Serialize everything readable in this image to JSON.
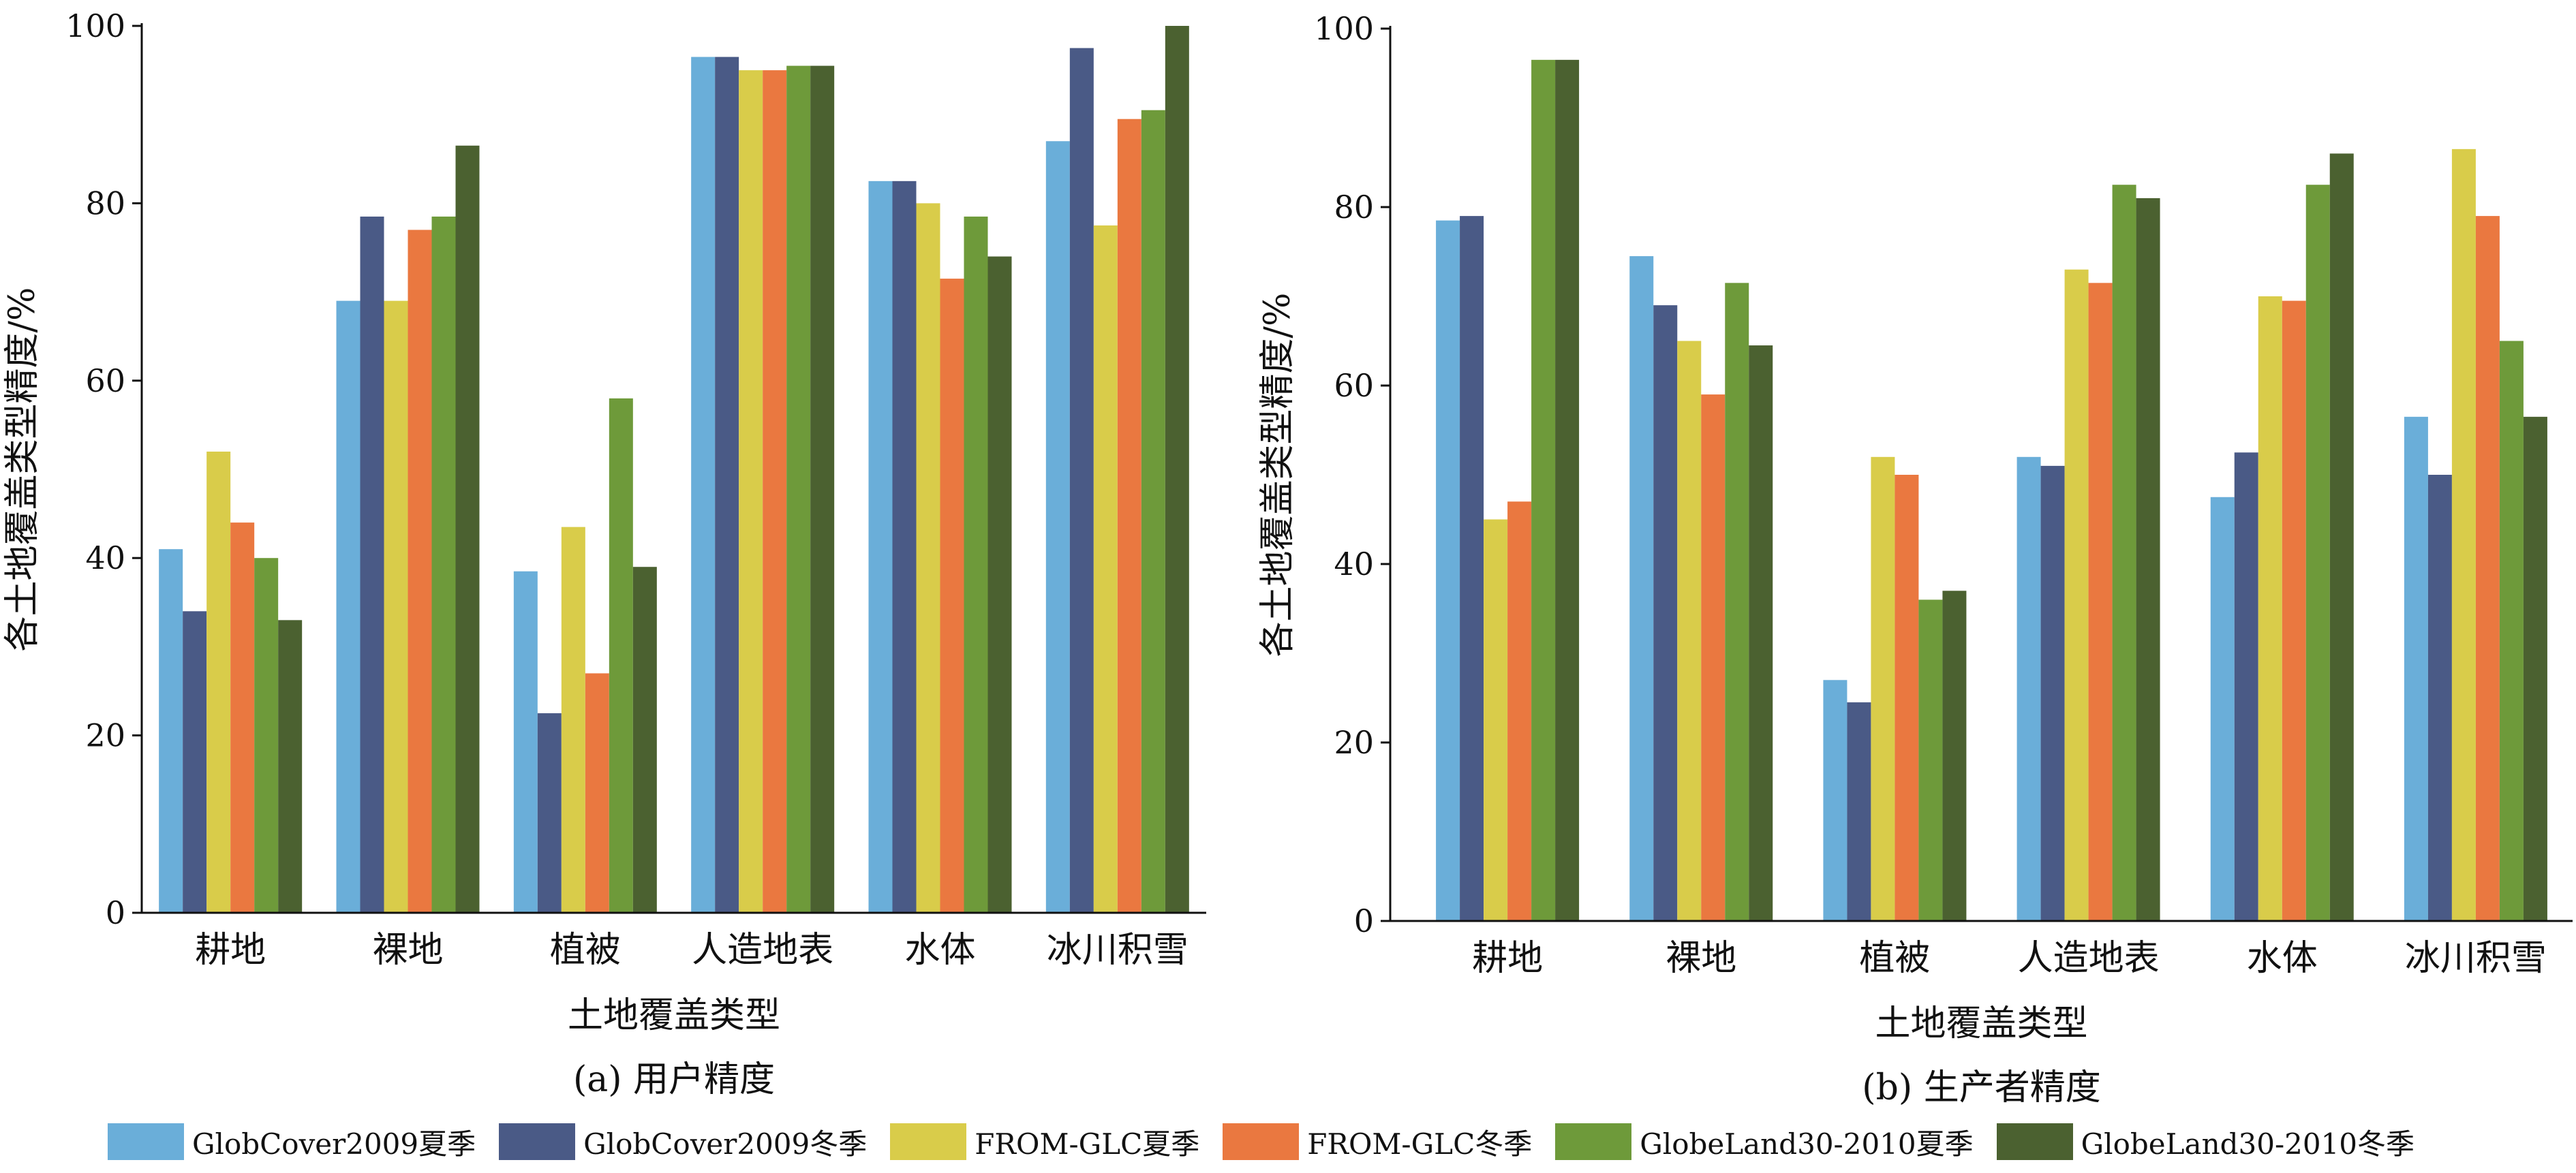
{
  "colors": {
    "GlobCover2009_summer": "#6aaed9",
    "GlobCover2009_winter": "#4a5a86",
    "FROM-GLC_summer": "#d9cc4a",
    "FROM-GLC_winter": "#ea7840",
    "GlobeLand30_summer": "#6e9a3a",
    "GlobeLand30_winter": "#4b6130",
    "axis": "#111111"
  },
  "legend": [
    {
      "name": "GlobCover2009夏季",
      "color": "#6aaed9"
    },
    {
      "name": "GlobCover2009冬季",
      "color": "#4a5a86"
    },
    {
      "name": "FROM-GLC夏季",
      "color": "#d9cc4a"
    },
    {
      "name": "FROM-GLC冬季",
      "color": "#ea7840"
    },
    {
      "name": "GlobeLand30-2010夏季",
      "color": "#6e9a3a"
    },
    {
      "name": "GlobeLand30-2010冬季",
      "color": "#4b6130"
    }
  ],
  "chart_data": [
    {
      "type": "bar",
      "caption": "(a) 用户精度",
      "xlabel": "土地覆盖类型",
      "ylabel": "各土地覆盖类型精度/%",
      "ylim": [
        0,
        100
      ],
      "yticks": [
        0,
        20,
        40,
        60,
        80,
        100
      ],
      "categories": [
        "耕地",
        "裸地",
        "植被",
        "人造地表",
        "水体",
        "冰川积雪"
      ],
      "series": [
        {
          "name": "GlobCover2009夏季",
          "values": [
            41,
            69,
            38.5,
            96.5,
            82.5,
            87
          ]
        },
        {
          "name": "GlobCover2009冬季",
          "values": [
            34,
            78.5,
            22.5,
            96.5,
            82.5,
            97.5
          ]
        },
        {
          "name": "FROM-GLC夏季",
          "values": [
            52,
            69,
            43.5,
            95,
            80,
            77.5
          ]
        },
        {
          "name": "FROM-GLC冬季",
          "values": [
            44,
            77,
            27,
            95,
            71.5,
            89.5
          ]
        },
        {
          "name": "GlobeLand30-2010夏季",
          "values": [
            40,
            78.5,
            58,
            95.5,
            78.5,
            90.5
          ]
        },
        {
          "name": "GlobeLand30-2010冬季",
          "values": [
            33,
            86.5,
            39,
            95.5,
            74,
            100
          ]
        }
      ]
    },
    {
      "type": "bar",
      "caption": "(b) 生产者精度",
      "xlabel": "土地覆盖类型",
      "ylabel": "各土地覆盖类型精度/%",
      "ylim": [
        0,
        100
      ],
      "yticks": [
        0,
        20,
        40,
        60,
        80,
        100
      ],
      "categories": [
        "耕地",
        "裸地",
        "植被",
        "人造地表",
        "水体",
        "冰川积雪"
      ],
      "series": [
        {
          "name": "GlobCover2009夏季",
          "values": [
            78.5,
            74.5,
            27,
            52,
            47.5,
            56.5
          ]
        },
        {
          "name": "GlobCover2009冬季",
          "values": [
            79,
            69,
            24.5,
            51,
            52.5,
            50
          ]
        },
        {
          "name": "FROM-GLC夏季",
          "values": [
            45,
            65,
            52,
            73,
            70,
            86.5
          ]
        },
        {
          "name": "FROM-GLC冬季",
          "values": [
            47,
            59,
            50,
            71.5,
            69.5,
            79
          ]
        },
        {
          "name": "GlobeLand30-2010夏季",
          "values": [
            96.5,
            71.5,
            36,
            82.5,
            82.5,
            65
          ]
        },
        {
          "name": "GlobeLand30-2010冬季",
          "values": [
            96.5,
            64.5,
            37,
            81,
            86,
            56.5
          ]
        }
      ]
    }
  ]
}
